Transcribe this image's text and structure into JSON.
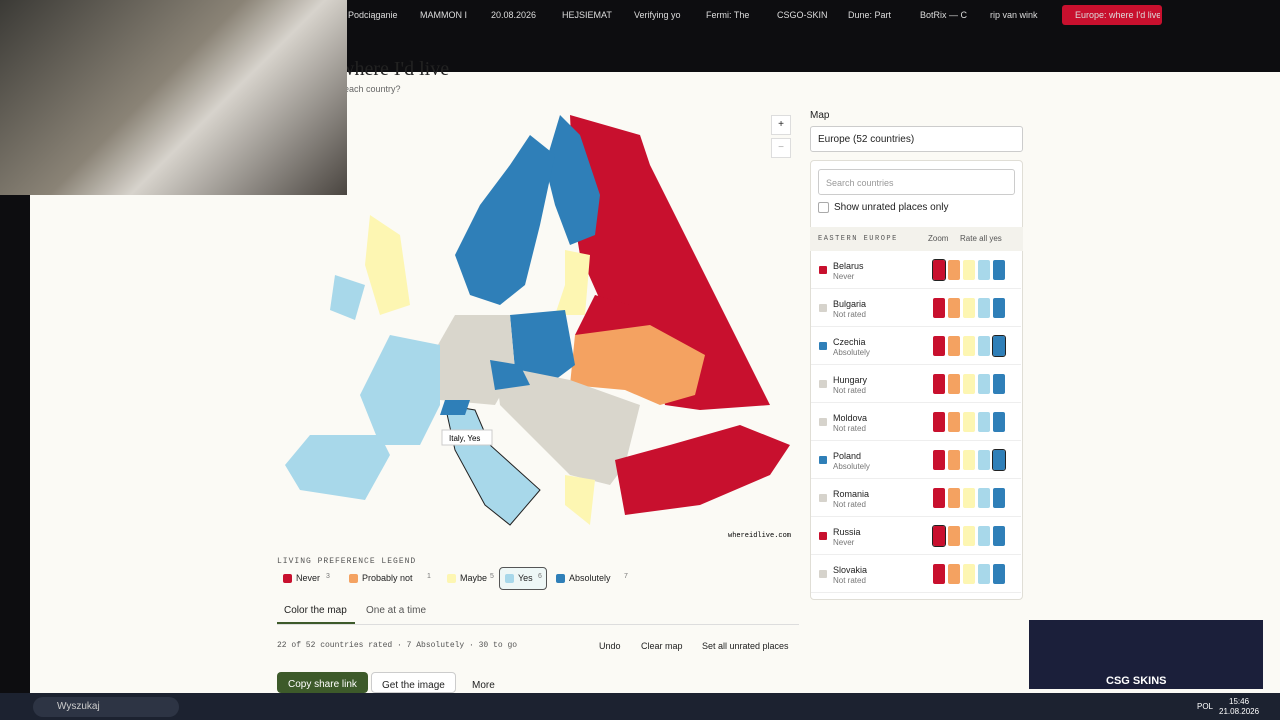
{
  "browser": {
    "tabs": [
      "Podciąganie",
      "MAMMON I",
      "20.08.2026",
      "HEJSIEMAT",
      "Verifying yo",
      "Fermi: The",
      "CSGO-SKIN",
      "Dune: Part",
      "BotRix — C",
      "rip van wink",
      "Europe: where I'd live"
    ]
  },
  "page": {
    "title": "where I'd live",
    "subtitle": "each country?"
  },
  "map": {
    "tooltip": "Italy, Yes",
    "watermark": "whereidlive.com",
    "zoom_in": "+",
    "zoom_out": "−"
  },
  "legend": {
    "title": "LIVING PREFERENCE LEGEND",
    "items": [
      {
        "name": "Never",
        "count": 3,
        "color": "#c8102e"
      },
      {
        "name": "Probably not",
        "count": 1,
        "color": "#f4a261"
      },
      {
        "name": "Maybe",
        "count": 5,
        "color": "#fdf6b2"
      },
      {
        "name": "Yes",
        "count": 6,
        "color": "#a8d8ea",
        "selected": true
      },
      {
        "name": "Absolutely",
        "count": 7,
        "color": "#2f7fb8"
      }
    ]
  },
  "modes": [
    "Color the map",
    "One at a time"
  ],
  "status": "22 of 52 countries rated · 7 Absolutely · 30 to go",
  "actions": [
    "Undo",
    "Clear map",
    "Set all unrated places"
  ],
  "buttons": [
    "Copy share link",
    "Get the image",
    "More"
  ],
  "sidebar": {
    "label": "Map",
    "select": "Europe (52 countries)",
    "search": "Search countries",
    "checkbox": "Show unrated places only",
    "group": "EASTERN EUROPE",
    "zoom": "Zoom",
    "rate_all": "Rate all yes",
    "countries": [
      {
        "name": "Belarus",
        "status": "Never"
      },
      {
        "name": "Bulgaria",
        "status": "Not rated"
      },
      {
        "name": "Czechia",
        "status": "Absolutely"
      },
      {
        "name": "Hungary",
        "status": "Not rated"
      },
      {
        "name": "Moldova",
        "status": "Not rated"
      },
      {
        "name": "Poland",
        "status": "Absolutely"
      },
      {
        "name": "Romania",
        "status": "Not rated"
      },
      {
        "name": "Russia",
        "status": "Never"
      },
      {
        "name": "Slovakia",
        "status": "Not rated"
      }
    ]
  },
  "ad": {
    "brand": "CSG SKINS"
  },
  "taskbar": {
    "search": "Wyszukaj",
    "lang": "POL",
    "time": "15:46",
    "date": "21.08.2026"
  }
}
